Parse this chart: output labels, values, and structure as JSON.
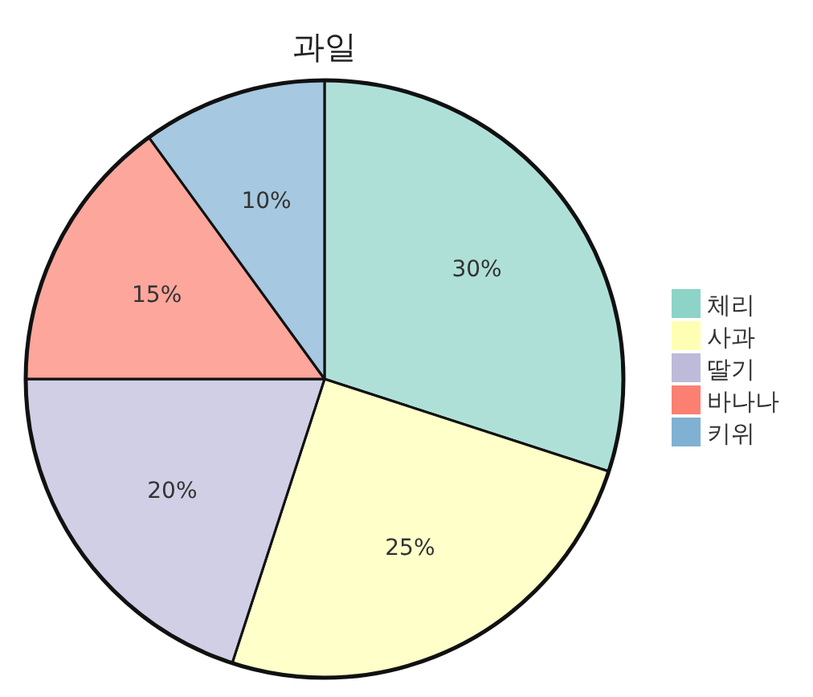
{
  "chart_data": {
    "type": "pie",
    "title": "과일",
    "categories": [
      "체리",
      "사과",
      "딸기",
      "바나나",
      "키위"
    ],
    "values": [
      30,
      25,
      20,
      15,
      10
    ],
    "colors": [
      "#8dd3c7",
      "#ffffb3",
      "#bebada",
      "#fb8072",
      "#80b1d3"
    ],
    "value_labels": [
      "30%",
      "25%",
      "20%",
      "15%",
      "10%"
    ],
    "legend": "right"
  }
}
